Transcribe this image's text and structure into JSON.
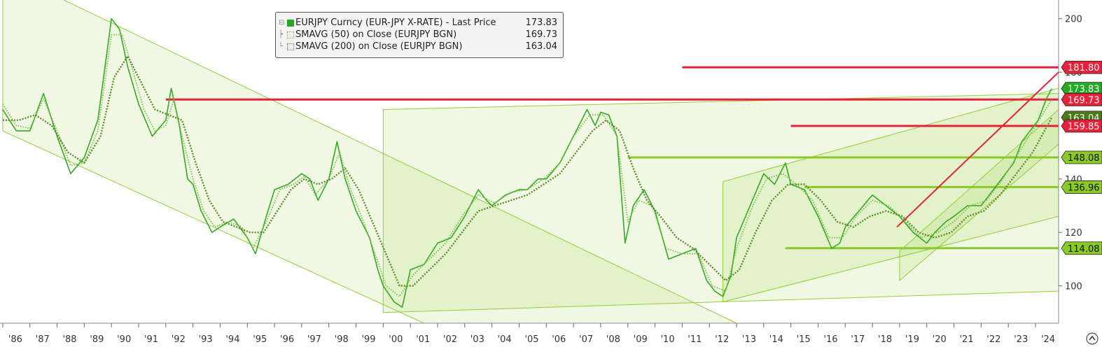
{
  "legend": {
    "main": {
      "name": "EURJPY Curncy (EUR-JPY X-RATE) - Last Price",
      "value": "173.83",
      "color": "#22aa22"
    },
    "sma50": {
      "name": "SMAVG (50)  on Close (EURJPY BGN)",
      "value": "169.73"
    },
    "sma200": {
      "name": "SMAVG (200)  on Close (EURJPY BGN)",
      "value": "163.04"
    }
  },
  "chart_data": {
    "type": "line",
    "title": "",
    "xlabel": "",
    "ylabel": "",
    "x_ticks": [
      "'86",
      "'87",
      "'88",
      "'89",
      "'90",
      "'91",
      "'92",
      "'93",
      "'94",
      "'95",
      "'96",
      "'97",
      "'98",
      "'99",
      "'00",
      "'01",
      "'02",
      "'03",
      "'04",
      "'05",
      "'06",
      "'07",
      "'08",
      "'09",
      "'10",
      "'11",
      "'12",
      "'13",
      "'14",
      "'15",
      "'16",
      "'17",
      "'18",
      "'19",
      "'20",
      "'21",
      "'22",
      "'23",
      "'24"
    ],
    "y_ticks": [
      100,
      120,
      140,
      180,
      200
    ],
    "ylim": [
      86,
      207
    ],
    "xlim": [
      1985.9,
      2024.85
    ],
    "series": [
      {
        "name": "EURJPY Curncy (EUR-JPY X-RATE) - Last Price",
        "color": "#33aa22",
        "points": [
          [
            1986.0,
            166
          ],
          [
            1986.5,
            158
          ],
          [
            1987.0,
            158
          ],
          [
            1987.5,
            172
          ],
          [
            1988.0,
            156
          ],
          [
            1988.5,
            142
          ],
          [
            1989.0,
            148
          ],
          [
            1989.5,
            162
          ],
          [
            1990.0,
            200
          ],
          [
            1990.3,
            196
          ],
          [
            1990.6,
            182
          ],
          [
            1991.0,
            168
          ],
          [
            1991.5,
            156
          ],
          [
            1992.0,
            162
          ],
          [
            1992.2,
            174
          ],
          [
            1992.5,
            160
          ],
          [
            1992.8,
            140
          ],
          [
            1993.0,
            138
          ],
          [
            1993.3,
            128
          ],
          [
            1993.7,
            120
          ],
          [
            1994.0,
            122
          ],
          [
            1994.5,
            125
          ],
          [
            1995.0,
            118
          ],
          [
            1995.3,
            112
          ],
          [
            1995.7,
            126
          ],
          [
            1996.0,
            136
          ],
          [
            1996.5,
            138
          ],
          [
            1997.0,
            142
          ],
          [
            1997.3,
            140
          ],
          [
            1997.6,
            132
          ],
          [
            1998.0,
            140
          ],
          [
            1998.3,
            154
          ],
          [
            1998.6,
            140
          ],
          [
            1999.0,
            128
          ],
          [
            1999.5,
            118
          ],
          [
            1999.8,
            106
          ],
          [
            2000.0,
            100
          ],
          [
            2000.4,
            94
          ],
          [
            2000.7,
            92
          ],
          [
            2001.0,
            106
          ],
          [
            2001.5,
            108
          ],
          [
            2002.0,
            116
          ],
          [
            2002.5,
            118
          ],
          [
            2003.0,
            126
          ],
          [
            2003.5,
            136
          ],
          [
            2003.8,
            132
          ],
          [
            2004.0,
            130
          ],
          [
            2004.5,
            134
          ],
          [
            2005.0,
            136
          ],
          [
            2005.3,
            136
          ],
          [
            2005.7,
            140
          ],
          [
            2006.0,
            140
          ],
          [
            2006.5,
            146
          ],
          [
            2007.0,
            156
          ],
          [
            2007.5,
            166
          ],
          [
            2007.8,
            160
          ],
          [
            2008.0,
            165
          ],
          [
            2008.3,
            164
          ],
          [
            2008.6,
            156
          ],
          [
            2008.9,
            116
          ],
          [
            2009.2,
            130
          ],
          [
            2009.6,
            136
          ],
          [
            2010.0,
            128
          ],
          [
            2010.5,
            110
          ],
          [
            2011.0,
            112
          ],
          [
            2011.5,
            114
          ],
          [
            2011.9,
            102
          ],
          [
            2012.2,
            98
          ],
          [
            2012.5,
            96
          ],
          [
            2012.8,
            104
          ],
          [
            2013.0,
            118
          ],
          [
            2013.5,
            130
          ],
          [
            2014.0,
            142
          ],
          [
            2014.4,
            138
          ],
          [
            2014.8,
            146
          ],
          [
            2015.0,
            138
          ],
          [
            2015.5,
            136
          ],
          [
            2016.0,
            126
          ],
          [
            2016.5,
            114
          ],
          [
            2016.8,
            116
          ],
          [
            2017.0,
            122
          ],
          [
            2017.5,
            128
          ],
          [
            2018.0,
            134
          ],
          [
            2018.5,
            130
          ],
          [
            2019.0,
            126
          ],
          [
            2019.5,
            120
          ],
          [
            2020.0,
            116
          ],
          [
            2020.3,
            120
          ],
          [
            2020.7,
            124
          ],
          [
            2021.0,
            126
          ],
          [
            2021.5,
            130
          ],
          [
            2022.0,
            130
          ],
          [
            2022.3,
            134
          ],
          [
            2022.6,
            138
          ],
          [
            2022.9,
            142
          ],
          [
            2023.2,
            146
          ],
          [
            2023.5,
            154
          ],
          [
            2023.8,
            158
          ],
          [
            2024.1,
            162
          ],
          [
            2024.4,
            170
          ],
          [
            2024.6,
            173.83
          ]
        ]
      },
      {
        "name": "SMAVG (50)  on Close (EURJPY BGN)",
        "color": "#77bb44",
        "points": [
          [
            1986.0,
            168
          ],
          [
            1986.5,
            160
          ],
          [
            1987.0,
            159
          ],
          [
            1987.5,
            170
          ],
          [
            1988.0,
            158
          ],
          [
            1988.5,
            145
          ],
          [
            1989.0,
            146
          ],
          [
            1989.5,
            158
          ],
          [
            1990.0,
            194
          ],
          [
            1990.4,
            194
          ],
          [
            1990.8,
            180
          ],
          [
            1991.2,
            166
          ],
          [
            1991.6,
            158
          ],
          [
            1992.0,
            160
          ],
          [
            1992.3,
            170
          ],
          [
            1992.6,
            156
          ],
          [
            1993.0,
            140
          ],
          [
            1993.4,
            128
          ],
          [
            1993.8,
            122
          ],
          [
            1994.3,
            124
          ],
          [
            1994.8,
            122
          ],
          [
            1995.2,
            114
          ],
          [
            1995.7,
            124
          ],
          [
            1996.2,
            136
          ],
          [
            1996.7,
            138
          ],
          [
            1997.1,
            141
          ],
          [
            1997.5,
            134
          ],
          [
            1998.0,
            140
          ],
          [
            1998.4,
            150
          ],
          [
            1998.8,
            136
          ],
          [
            1999.2,
            126
          ],
          [
            1999.7,
            112
          ],
          [
            2000.1,
            100
          ],
          [
            2000.6,
            96
          ],
          [
            2001.1,
            104
          ],
          [
            2001.7,
            110
          ],
          [
            2002.3,
            116
          ],
          [
            2002.9,
            126
          ],
          [
            2003.5,
            134
          ],
          [
            2004.1,
            131
          ],
          [
            2004.7,
            135
          ],
          [
            2005.3,
            136
          ],
          [
            2005.9,
            140
          ],
          [
            2006.5,
            146
          ],
          [
            2007.0,
            156
          ],
          [
            2007.6,
            164
          ],
          [
            2008.1,
            164
          ],
          [
            2008.6,
            156
          ],
          [
            2009.0,
            124
          ],
          [
            2009.4,
            132
          ],
          [
            2009.9,
            130
          ],
          [
            2010.4,
            114
          ],
          [
            2011.0,
            112
          ],
          [
            2011.6,
            112
          ],
          [
            2012.1,
            100
          ],
          [
            2012.6,
            98
          ],
          [
            2013.0,
            114
          ],
          [
            2013.6,
            130
          ],
          [
            2014.1,
            140
          ],
          [
            2014.7,
            142
          ],
          [
            2015.2,
            138
          ],
          [
            2015.8,
            132
          ],
          [
            2016.4,
            118
          ],
          [
            2016.9,
            118
          ],
          [
            2017.4,
            126
          ],
          [
            2018.0,
            132
          ],
          [
            2018.6,
            130
          ],
          [
            2019.2,
            124
          ],
          [
            2019.8,
            118
          ],
          [
            2020.4,
            120
          ],
          [
            2021.0,
            124
          ],
          [
            2021.6,
            130
          ],
          [
            2022.2,
            132
          ],
          [
            2022.8,
            140
          ],
          [
            2023.4,
            150
          ],
          [
            2024.0,
            160
          ],
          [
            2024.6,
            169.73
          ]
        ]
      },
      {
        "name": "SMAVG (200)  on Close (EURJPY BGN)",
        "color": "#5a8a2a",
        "points": [
          [
            1986.0,
            162
          ],
          [
            1986.6,
            162
          ],
          [
            1987.2,
            164
          ],
          [
            1987.8,
            160
          ],
          [
            1988.4,
            150
          ],
          [
            1989.0,
            146
          ],
          [
            1989.6,
            156
          ],
          [
            1990.1,
            178
          ],
          [
            1990.6,
            186
          ],
          [
            1991.1,
            176
          ],
          [
            1991.6,
            166
          ],
          [
            1992.1,
            164
          ],
          [
            1992.6,
            162
          ],
          [
            1993.1,
            146
          ],
          [
            1993.6,
            132
          ],
          [
            1994.1,
            124
          ],
          [
            1994.6,
            122
          ],
          [
            1995.1,
            120
          ],
          [
            1995.6,
            120
          ],
          [
            1996.1,
            128
          ],
          [
            1996.6,
            136
          ],
          [
            1997.1,
            140
          ],
          [
            1997.6,
            138
          ],
          [
            1998.1,
            140
          ],
          [
            1998.6,
            144
          ],
          [
            1999.1,
            136
          ],
          [
            1999.6,
            124
          ],
          [
            2000.1,
            112
          ],
          [
            2000.6,
            100
          ],
          [
            2001.1,
            100
          ],
          [
            2001.7,
            106
          ],
          [
            2002.3,
            112
          ],
          [
            2002.9,
            120
          ],
          [
            2003.5,
            128
          ],
          [
            2004.1,
            130
          ],
          [
            2004.7,
            132
          ],
          [
            2005.3,
            134
          ],
          [
            2005.9,
            138
          ],
          [
            2006.5,
            142
          ],
          [
            2007.1,
            150
          ],
          [
            2007.7,
            158
          ],
          [
            2008.2,
            162
          ],
          [
            2008.7,
            158
          ],
          [
            2009.2,
            144
          ],
          [
            2009.7,
            132
          ],
          [
            2010.2,
            126
          ],
          [
            2010.8,
            118
          ],
          [
            2011.4,
            114
          ],
          [
            2012.0,
            108
          ],
          [
            2012.6,
            102
          ],
          [
            2013.1,
            106
          ],
          [
            2013.7,
            120
          ],
          [
            2014.3,
            132
          ],
          [
            2014.9,
            138
          ],
          [
            2015.5,
            138
          ],
          [
            2016.1,
            132
          ],
          [
            2016.7,
            124
          ],
          [
            2017.3,
            122
          ],
          [
            2017.9,
            126
          ],
          [
            2018.5,
            128
          ],
          [
            2019.1,
            126
          ],
          [
            2019.7,
            120
          ],
          [
            2020.3,
            118
          ],
          [
            2020.9,
            120
          ],
          [
            2021.5,
            126
          ],
          [
            2022.1,
            128
          ],
          [
            2022.7,
            134
          ],
          [
            2023.3,
            142
          ],
          [
            2023.9,
            150
          ],
          [
            2024.6,
            163.04
          ]
        ]
      }
    ],
    "price_tags": [
      {
        "value": 181.8,
        "label": "181.80",
        "color": "#e8203a"
      },
      {
        "value": 173.83,
        "label": "173.83",
        "color": "#22aa22"
      },
      {
        "value": 169.73,
        "label": "169.73",
        "color": "#e8203a"
      },
      {
        "value": 163.04,
        "label": "163.04",
        "color": "#4a7a1a"
      },
      {
        "value": 159.85,
        "label": "159.85",
        "color": "#e8203a"
      },
      {
        "value": 148.08,
        "label": "148.08",
        "color": "#8ac926"
      },
      {
        "value": 136.96,
        "label": "136.96",
        "color": "#8ac926"
      },
      {
        "value": 114.08,
        "label": "114.08",
        "color": "#8ac926"
      }
    ],
    "horizontal_lines": [
      {
        "value": 181.8,
        "x_from": 2011.0,
        "x_to": 2024.85,
        "color": "#e8203a"
      },
      {
        "value": 169.73,
        "x_from": 1992.0,
        "x_to": 2024.85,
        "color": "#e8203a"
      },
      {
        "value": 159.85,
        "x_from": 2015.0,
        "x_to": 2024.85,
        "color": "#e8203a"
      },
      {
        "value": 148.08,
        "x_from": 2009.0,
        "x_to": 2024.85,
        "color": "#8ac926"
      },
      {
        "value": 136.96,
        "x_from": 2015.5,
        "x_to": 2024.85,
        "color": "#8ac926"
      },
      {
        "value": 114.08,
        "x_from": 2014.8,
        "x_to": 2024.85,
        "color": "#8ac926"
      }
    ],
    "trend_lines": [
      {
        "from": [
          2018.9,
          122
        ],
        "to": [
          2024.85,
          180
        ],
        "color": "#e8203a"
      }
    ],
    "channels": [
      {
        "top": [
          [
            1986.0,
            218
          ],
          [
            2013.0,
            86
          ]
        ],
        "bottom": [
          [
            1986.0,
            158
          ],
          [
            2001.5,
            86
          ]
        ],
        "color": "#8ac926"
      },
      {
        "top": [
          [
            2000.0,
            166
          ],
          [
            2024.85,
            172
          ]
        ],
        "bottom": [
          [
            2000.0,
            90
          ],
          [
            2024.85,
            98
          ]
        ],
        "color": "#8ac926"
      },
      {
        "top": [
          [
            2012.5,
            139
          ],
          [
            2024.85,
            174
          ]
        ],
        "bottom": [
          [
            2012.5,
            94
          ],
          [
            2024.85,
            126
          ]
        ],
        "color": "#8ac926"
      },
      {
        "top": [
          [
            2019.0,
            113
          ],
          [
            2024.85,
            166
          ]
        ],
        "bottom": [
          [
            2019.0,
            102
          ],
          [
            2024.85,
            153
          ]
        ],
        "color": "#8ac926"
      }
    ]
  }
}
